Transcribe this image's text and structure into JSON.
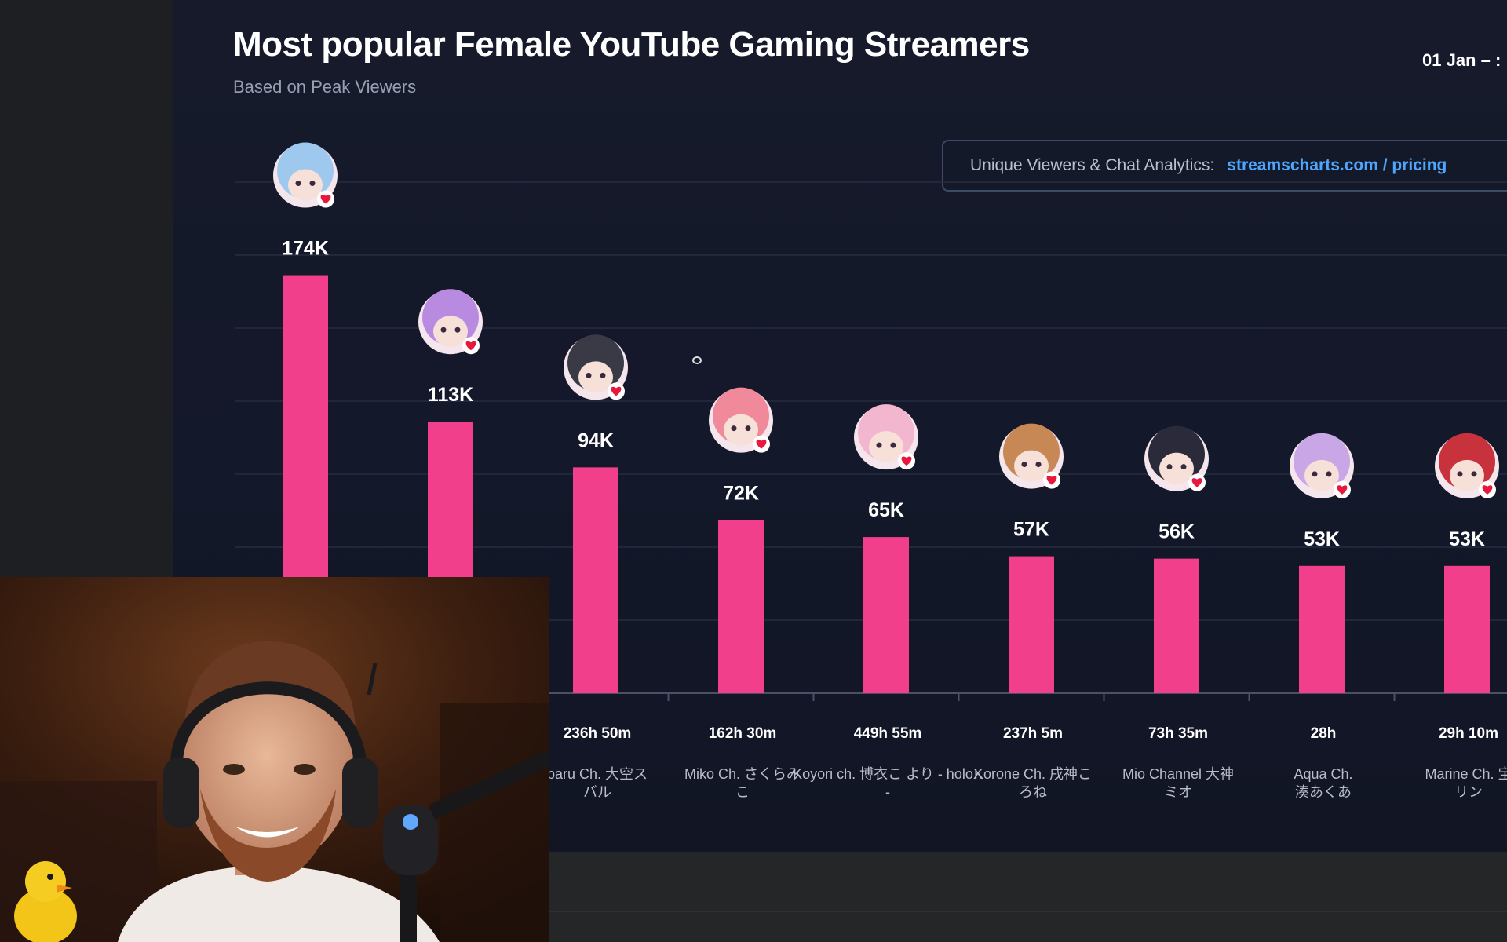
{
  "chart_header": {
    "title": "Most popular Female YouTube Gaming Streamers",
    "subtitle": "Based on Peak Viewers",
    "date_range": "01 Jan – :"
  },
  "analytics_banner": {
    "label": "Unique Viewers & Chat Analytics:",
    "link": "streamscharts.com / pricing"
  },
  "colors": {
    "bar": "#f23f8c",
    "background": "#13182a",
    "text": "#ffffff",
    "link": "#4da6ff"
  },
  "chart_data": {
    "type": "bar",
    "title": "Most popular Female YouTube Gaming Streamers",
    "subtitle": "Based on Peak Viewers",
    "ylim": [
      0,
      200000
    ],
    "grid": true,
    "categories": [
      "",
      "",
      "baru Ch. 大空ス バル",
      "Miko Ch. さくらみ こ",
      "Koyori ch. 博衣こ より - holoX -",
      "Korone Ch. 戌神こ ろね",
      "Mio Channel 大神 ミオ",
      "Aqua Ch. 湊あくあ",
      "Marine Ch. 宝 リン"
    ],
    "values": [
      174000,
      113000,
      94000,
      72000,
      65000,
      57000,
      56000,
      53000,
      53000
    ],
    "value_labels": [
      "174K",
      "113K",
      "94K",
      "72K",
      "65K",
      "57K",
      "56K",
      "53K",
      "53K"
    ],
    "hours_streamed": [
      "",
      "",
      "236h 50m",
      "162h 30m",
      "449h 55m",
      "237h 5m",
      "73h 35m",
      "28h",
      "29h 10m"
    ],
    "avatars": [
      "blue-hair-avatar-icon",
      "purple-hair-avatar-icon",
      "dark-hair-avatar-icon",
      "pink-hair-avatar-icon",
      "light-pink-hair-avatar-icon",
      "brown-hair-avatar-icon",
      "black-hair-avatar-icon",
      "lavender-hair-avatar-icon",
      "red-hair-avatar-icon"
    ]
  }
}
